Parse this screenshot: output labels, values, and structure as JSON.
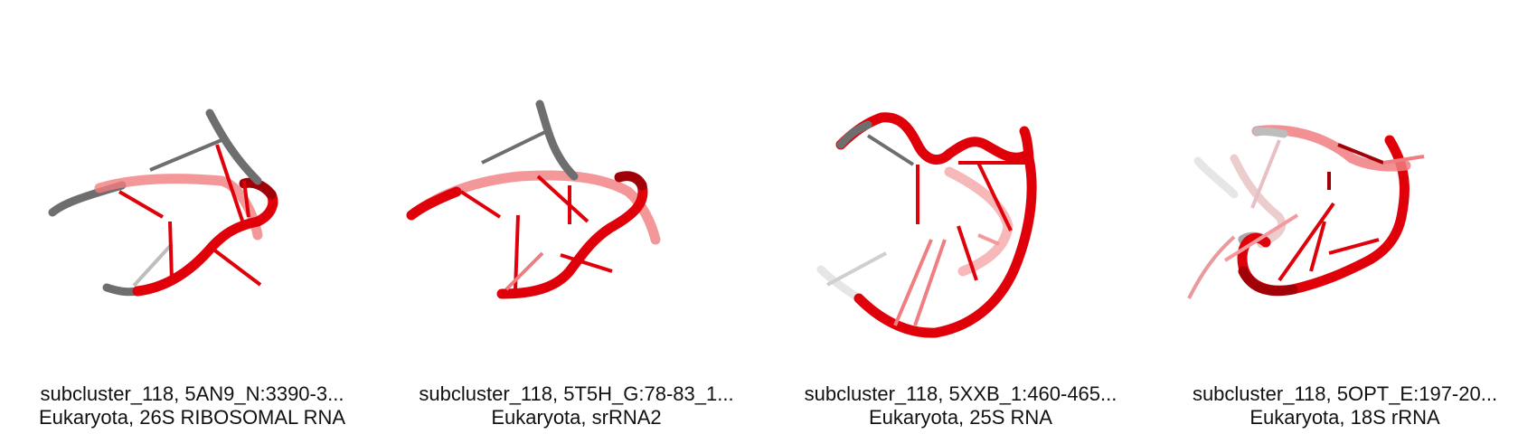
{
  "panels": [
    {
      "subtitle": "subcluster_118, 5AN9_N:3390-3...",
      "organism": "Eukaryota, 26S RIBOSOMAL RNA"
    },
    {
      "subtitle": "subcluster_118, 5T5H_G:78-83_1...",
      "organism": "Eukaryota, srRNA2"
    },
    {
      "subtitle": "subcluster_118, 5XXB_1:460-465...",
      "organism": "Eukaryota, 25S RNA"
    },
    {
      "subtitle": "subcluster_118, 5OPT_E:197-20...",
      "organism": "Eukaryota, 18S rRNA"
    }
  ],
  "colors": {
    "backbone_red": "#e0000a",
    "backbone_dark_red": "#a00008",
    "backbone_pink": "#f07d80",
    "backbone_grey": "#6e6e6e",
    "backbone_light_grey": "#cfcfcf",
    "caption_text": "#111111"
  }
}
